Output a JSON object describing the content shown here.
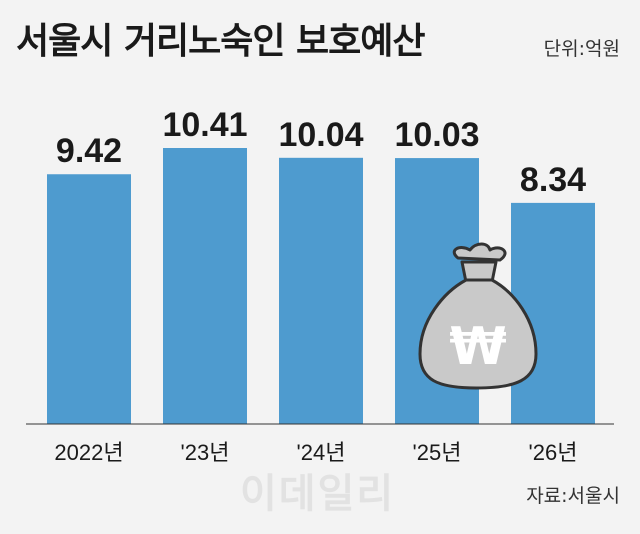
{
  "header": {
    "title": "서울시 거리노숙인 보호예산",
    "unit": "단위:억원"
  },
  "footer": {
    "source": "자료:서울시",
    "watermark": "이데일리"
  },
  "colors": {
    "bar": "#4e9bcf",
    "background": "#f3f3f3",
    "moneybag": "#c9c9c9",
    "moneybag_outline": "#333333"
  },
  "icon": "money-bag-won-icon",
  "chart_data": {
    "type": "bar",
    "categories": [
      "2022년",
      "'23년",
      "'24년",
      "'25년",
      "'26년"
    ],
    "values": [
      9.42,
      10.41,
      10.04,
      10.03,
      8.34
    ],
    "value_labels": [
      "9.42",
      "10.41",
      "10.04",
      "10.03",
      "8.34"
    ],
    "title": "서울시 거리노숙인 보호예산",
    "xlabel": "",
    "ylabel": "",
    "ylim": [
      0,
      10.41
    ],
    "grid": false,
    "legend": "none"
  }
}
